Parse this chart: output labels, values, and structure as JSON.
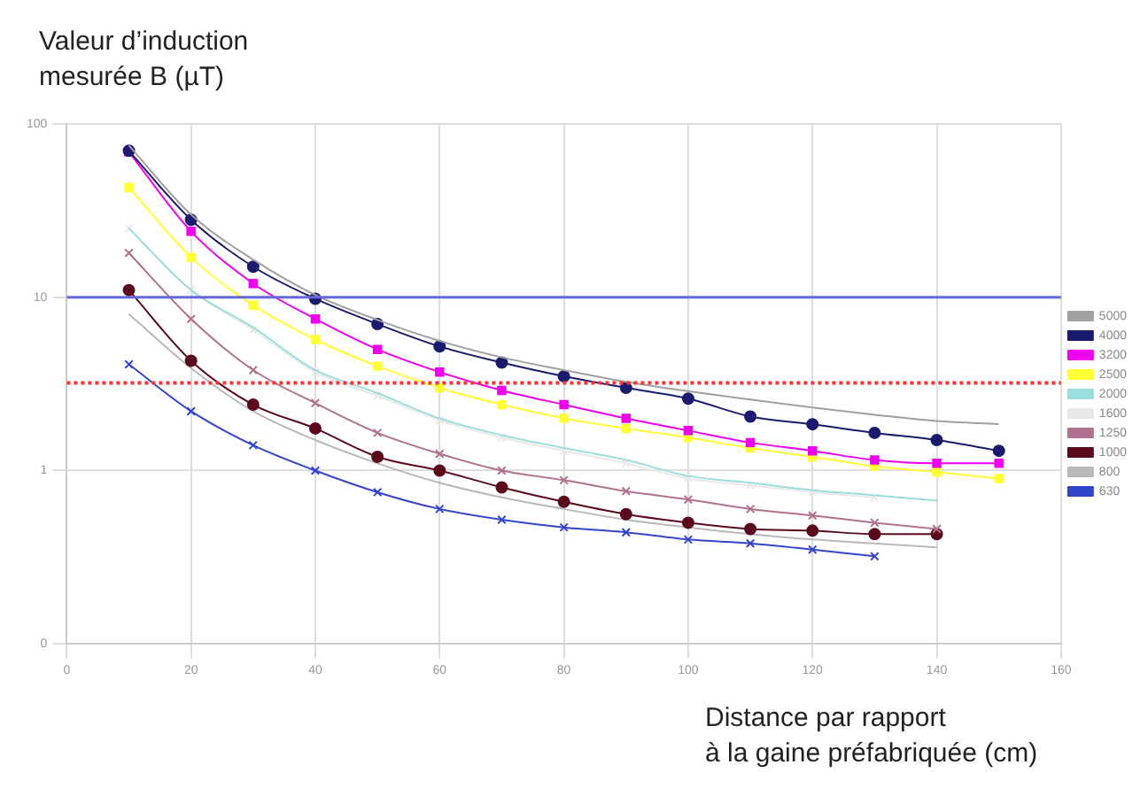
{
  "chart_data": {
    "type": "line",
    "ylabel": "Valeur d’induction\nmesurée B (µT)",
    "xlabel": "Distance par rapport\nà la gaine préfabriquée (cm)",
    "x": [
      10,
      20,
      30,
      40,
      50,
      60,
      70,
      80,
      90,
      100,
      110,
      120,
      130,
      140,
      150
    ],
    "xlim": [
      0,
      160
    ],
    "xticks": [
      0,
      20,
      40,
      60,
      80,
      100,
      120,
      140,
      160
    ],
    "ylim": [
      0.1,
      100
    ],
    "yticks": [
      {
        "value": 0.1,
        "label": "0"
      },
      1,
      10,
      100
    ],
    "log": "y",
    "grid": true,
    "legend": "right",
    "series": [
      {
        "name": "5000",
        "color": "#a0a0a0",
        "marker": "none",
        "values": [
          75,
          30,
          16.5,
          10.3,
          7.4,
          5.6,
          4.5,
          3.8,
          3.25,
          2.87,
          2.57,
          2.31,
          2.1,
          1.93,
          1.85
        ]
      },
      {
        "name": "4000",
        "color": "#1a1a6e",
        "marker": "circle",
        "values": [
          70,
          28,
          15,
          9.8,
          7,
          5.2,
          4.2,
          3.5,
          3,
          2.6,
          2.05,
          1.85,
          1.65,
          1.5,
          1.3
        ]
      },
      {
        "name": "3200",
        "color": "#ee00ee",
        "marker": "square",
        "values": [
          69,
          24,
          12,
          7.5,
          5,
          3.7,
          2.9,
          2.4,
          2,
          1.7,
          1.45,
          1.3,
          1.15,
          1.1,
          1.1
        ]
      },
      {
        "name": "2500",
        "color": "#ffff33",
        "marker": "square",
        "values": [
          43,
          17,
          9,
          5.7,
          4,
          3,
          2.4,
          2,
          1.75,
          1.55,
          1.35,
          1.2,
          1.06,
          0.98,
          0.9
        ]
      },
      {
        "name": "2000",
        "color": "#99dddd",
        "marker": "none",
        "values": [
          25,
          11,
          6.7,
          3.8,
          2.8,
          2,
          1.6,
          1.35,
          1.15,
          0.93,
          0.85,
          0.77,
          0.72,
          0.67,
          null
        ]
      },
      {
        "name": "1600",
        "color": "#e8e8e8",
        "marker": "cross",
        "values": [
          25,
          11,
          6.5,
          3.7,
          2.7,
          1.95,
          1.55,
          1.3,
          1.1,
          0.9,
          0.82,
          0.75,
          0.7,
          null,
          null
        ]
      },
      {
        "name": "1250",
        "color": "#b07090",
        "marker": "cross",
        "values": [
          18,
          7.5,
          3.8,
          2.45,
          1.65,
          1.25,
          1,
          0.88,
          0.76,
          0.68,
          0.6,
          0.55,
          0.5,
          0.46,
          null
        ]
      },
      {
        "name": "1000",
        "color": "#5a0a1a",
        "marker": "circle",
        "values": [
          11,
          4.3,
          2.4,
          1.75,
          1.2,
          1,
          0.8,
          0.66,
          0.56,
          0.5,
          0.46,
          0.45,
          0.43,
          0.43,
          null
        ]
      },
      {
        "name": "800",
        "color": "#b8b8b8",
        "marker": "none",
        "values": [
          8,
          3.9,
          2.2,
          1.5,
          1.1,
          0.85,
          0.7,
          0.6,
          0.52,
          0.47,
          0.43,
          0.4,
          0.38,
          0.36,
          null
        ]
      },
      {
        "name": "630",
        "color": "#3344cc",
        "marker": "cross",
        "values": [
          4.1,
          2.2,
          1.4,
          1,
          0.75,
          0.6,
          0.52,
          0.47,
          0.44,
          0.4,
          0.38,
          0.35,
          0.32,
          null,
          null
        ]
      }
    ],
    "ref_lines": [
      {
        "axis": "y",
        "value": 10,
        "color": "#6666dd",
        "line_style": "solid"
      },
      {
        "axis": "y",
        "value": 3.2,
        "color": "#ff3333",
        "line_style": "dotted"
      }
    ]
  }
}
